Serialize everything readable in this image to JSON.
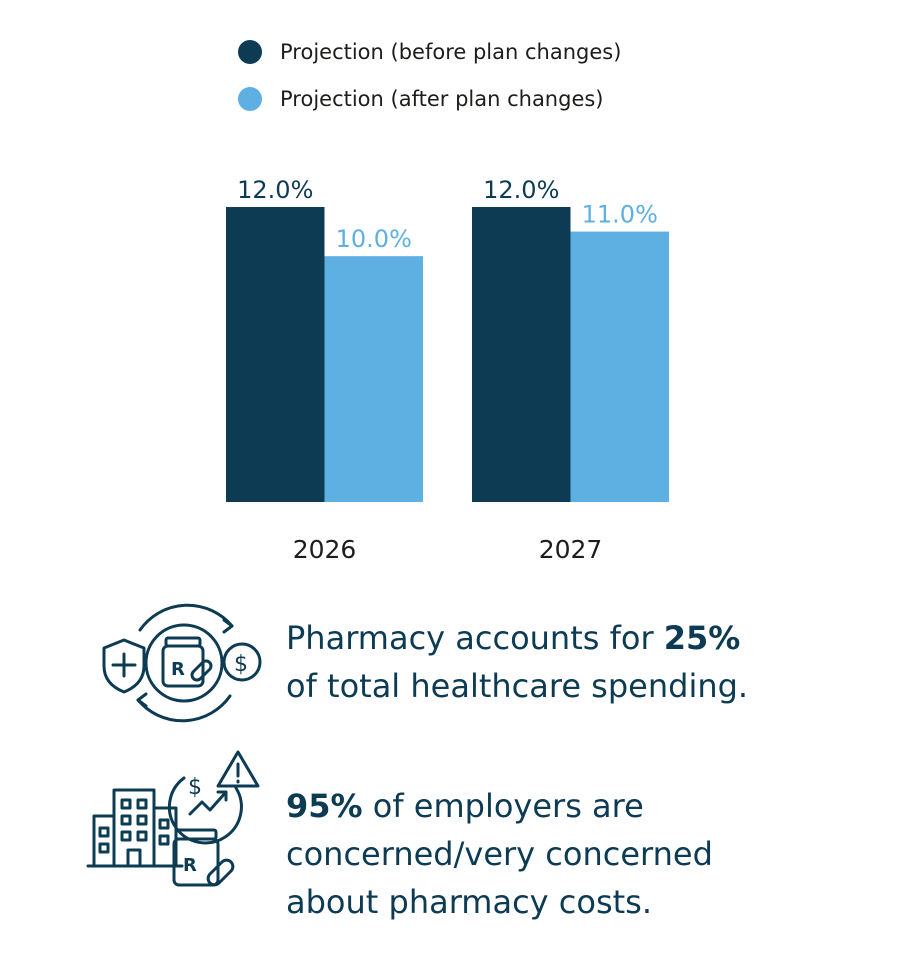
{
  "chart_data": {
    "type": "bar",
    "categories": [
      "2026",
      "2027"
    ],
    "series": [
      {
        "name": "Projection (before plan changes)",
        "values": [
          12.0,
          12.0
        ],
        "labels": [
          "12.0%",
          "12.0%"
        ],
        "color": "#0d3b54"
      },
      {
        "name": "Projection (after plan changes)",
        "values": [
          10.0,
          11.0
        ],
        "labels": [
          "10.0%",
          "11.0%"
        ],
        "color": "#5eb0e2"
      }
    ],
    "ylim": [
      0,
      12
    ],
    "grid": false,
    "legend_position": "top-left"
  },
  "stats": [
    {
      "icon": "pharmacy-cycle-icon",
      "bold": "25%",
      "before": "Pharmacy accounts for ",
      "line2": "of total healthcare spending."
    },
    {
      "icon": "employer-pharmacy-cost-icon",
      "bold": "95%",
      "after": " of employers are",
      "line2": "concerned/very concerned",
      "line3": "about pharmacy costs."
    }
  ]
}
